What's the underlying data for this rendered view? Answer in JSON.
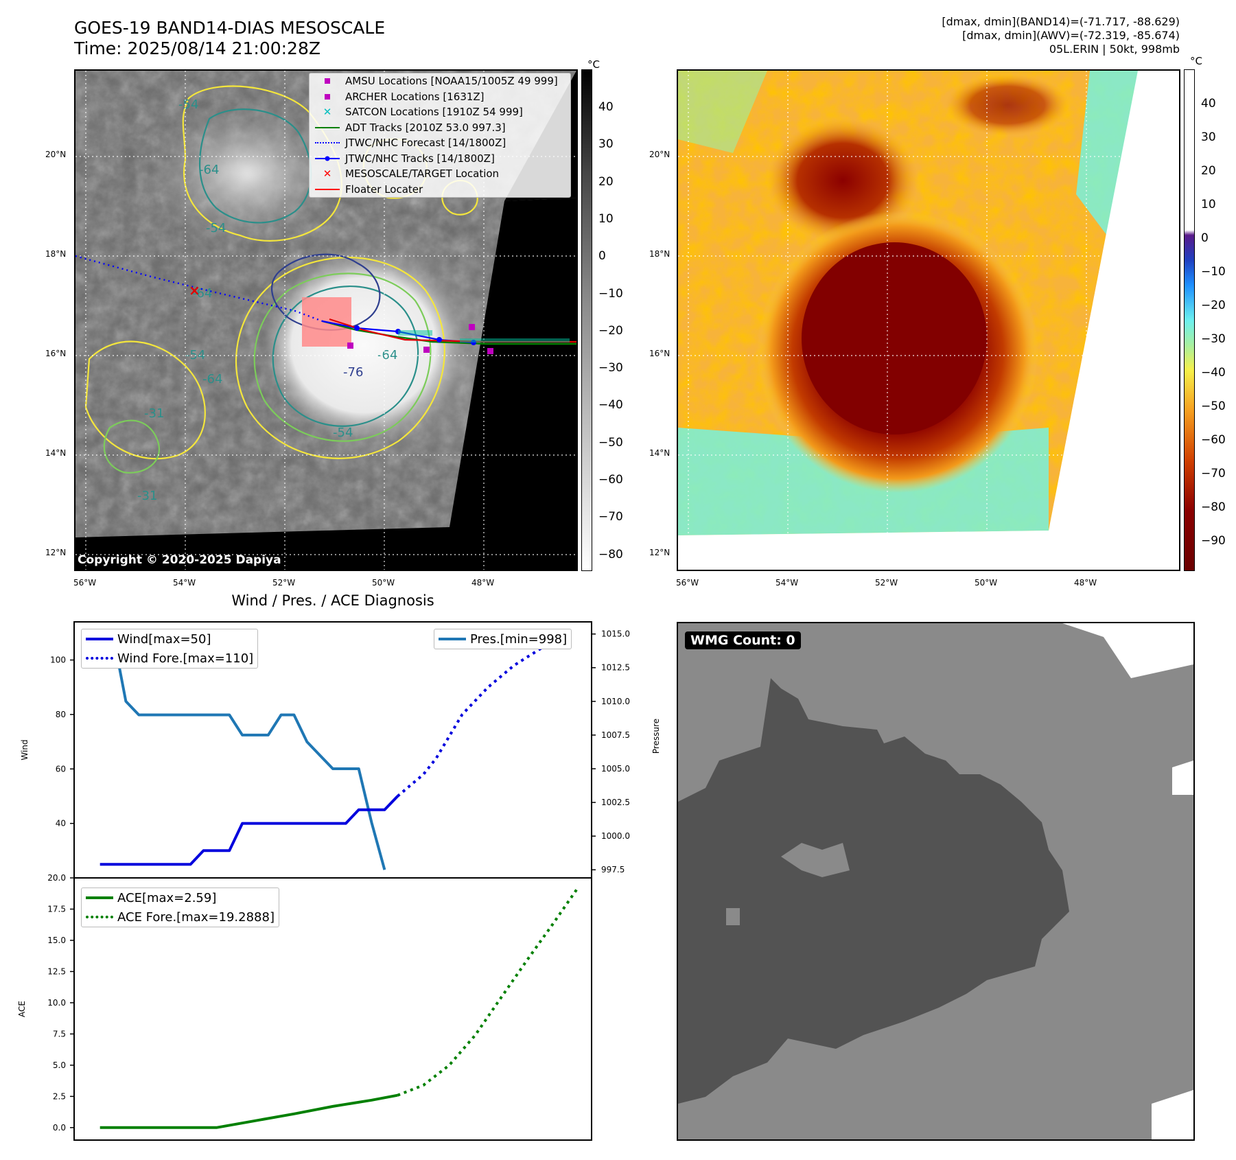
{
  "header": {
    "title_line1": "GOES-19 BAND14-DIAS MESOSCALE",
    "title_line2": "Time: 2025/08/14 21:00:28Z",
    "info_line1": "[dmax, dmin](BAND14)=(-71.717, -88.629)",
    "info_line2": "[dmax, dmin](AWV)=(-72.319, -85.674)",
    "info_line3": "05L.ERIN | 50kt, 998mb"
  },
  "map": {
    "lat_labels": [
      "20°N",
      "18°N",
      "16°N",
      "14°N",
      "12°N"
    ],
    "lon_labels": [
      "56°W",
      "54°W",
      "52°W",
      "50°W",
      "48°W"
    ],
    "copyright": "Copyright © 2020-2025 Dapiya",
    "contour_labels": [
      "-54",
      "-64",
      "-54",
      "-64",
      "-54",
      "-64",
      "-76",
      "-64",
      "-54",
      "-31",
      "-31"
    ],
    "legend": [
      {
        "label": "AMSU Locations [NOAA15/1005Z 49 999]",
        "symbol": "square",
        "color": "#bf00bf"
      },
      {
        "label": "ARCHER Locations [1631Z]",
        "symbol": "square",
        "color": "#bf00bf"
      },
      {
        "label": "SATCON Locations [1910Z 54 999]",
        "symbol": "x",
        "color": "#00bfbf"
      },
      {
        "label": "ADT Tracks [2010Z 53.0 997.3]",
        "symbol": "line",
        "color": "#008000"
      },
      {
        "label": "JTWC/NHC Forecast [14/1800Z]",
        "symbol": "dotted",
        "color": "#0000ff"
      },
      {
        "label": "JTWC/NHC Tracks [14/1800Z]",
        "symbol": "line-dot",
        "color": "#0000ff"
      },
      {
        "label": "MESOSCALE/TARGET Location",
        "symbol": "x",
        "color": "#ff0000"
      },
      {
        "label": "Floater Locater",
        "symbol": "line",
        "color": "#ff0000"
      }
    ]
  },
  "colorbar_gray": {
    "unit": "°C",
    "ticks": [
      "40",
      "30",
      "20",
      "10",
      "0",
      "−10",
      "−20",
      "−30",
      "−40",
      "−50",
      "−60",
      "−70",
      "−80"
    ]
  },
  "colorbar_color": {
    "unit": "°C",
    "ticks": [
      "40",
      "30",
      "20",
      "10",
      "0",
      "−10",
      "−20",
      "−30",
      "−40",
      "−50",
      "−60",
      "−70",
      "−80",
      "−90"
    ]
  },
  "wmg": {
    "label": "WMG Count: 0"
  },
  "chart_data": [
    {
      "type": "line",
      "title": "Wind / Pres. / ACE Diagnosis",
      "ylabel": "Wind",
      "ylabel_right": "Pressure",
      "y_ticks": [
        "40",
        "60",
        "80",
        "100"
      ],
      "y_ticks_right": [
        "997.5",
        "1000.0",
        "1002.5",
        "1005.0",
        "1007.5",
        "1010.0",
        "1012.5",
        "1015.0"
      ],
      "ylim": [
        20,
        114
      ],
      "ylim_right": [
        996.9,
        1015.9
      ],
      "series": [
        {
          "name": "Wind[max=50]",
          "color": "#0000dd",
          "style": "solid",
          "axis": "left",
          "x": [
            0,
            7,
            8,
            10,
            11,
            13,
            14,
            19,
            20,
            22,
            23
          ],
          "values": [
            25,
            25,
            30,
            30,
            40,
            40,
            40,
            40,
            45,
            45,
            50
          ]
        },
        {
          "name": "Wind Fore.[max=110]",
          "color": "#0000dd",
          "style": "dotted",
          "axis": "left",
          "x": [
            23,
            24,
            25,
            26,
            27,
            28,
            30,
            32,
            34,
            36
          ],
          "values": [
            50,
            54,
            58,
            64,
            72,
            80,
            90,
            98,
            104,
            110
          ]
        },
        {
          "name": "Pres.[min=998]",
          "color": "#1f77b4",
          "style": "solid",
          "axis": "right",
          "x": [
            0,
            1,
            2,
            3,
            4,
            5,
            6,
            7,
            8,
            9,
            10,
            11,
            12,
            13,
            14,
            15,
            16,
            17,
            18,
            19,
            20,
            21,
            22
          ],
          "values": [
            1015.0,
            1015.0,
            1010.0,
            1009.0,
            1009.0,
            1009.0,
            1009.0,
            1009.0,
            1009.0,
            1009.0,
            1009.0,
            1007.5,
            1007.5,
            1007.5,
            1009.0,
            1009.0,
            1007.0,
            1006.0,
            1005.0,
            1005.0,
            1005.0,
            1001.0,
            997.5
          ]
        }
      ],
      "xlim": [
        -2,
        38
      ]
    },
    {
      "type": "line",
      "ylabel": "ACE",
      "y_ticks": [
        "0.0",
        "2.5",
        "5.0",
        "7.5",
        "10.0",
        "12.5",
        "15.0",
        "17.5",
        "20.0"
      ],
      "ylim": [
        -1,
        20
      ],
      "series": [
        {
          "name": "ACE[max=2.59]",
          "color": "#008000",
          "style": "solid",
          "x": [
            0,
            9,
            12,
            15,
            18,
            21,
            23
          ],
          "values": [
            0,
            0,
            0.55,
            1.1,
            1.7,
            2.2,
            2.59
          ]
        },
        {
          "name": "ACE Fore.[max=19.2888]",
          "color": "#008000",
          "style": "dotted",
          "x": [
            23,
            25,
            27,
            29,
            31,
            33,
            35,
            37
          ],
          "values": [
            2.59,
            3.4,
            5.0,
            7.4,
            10.4,
            13.4,
            16.3,
            19.2888
          ]
        }
      ],
      "xlim": [
        -2,
        38
      ]
    }
  ]
}
